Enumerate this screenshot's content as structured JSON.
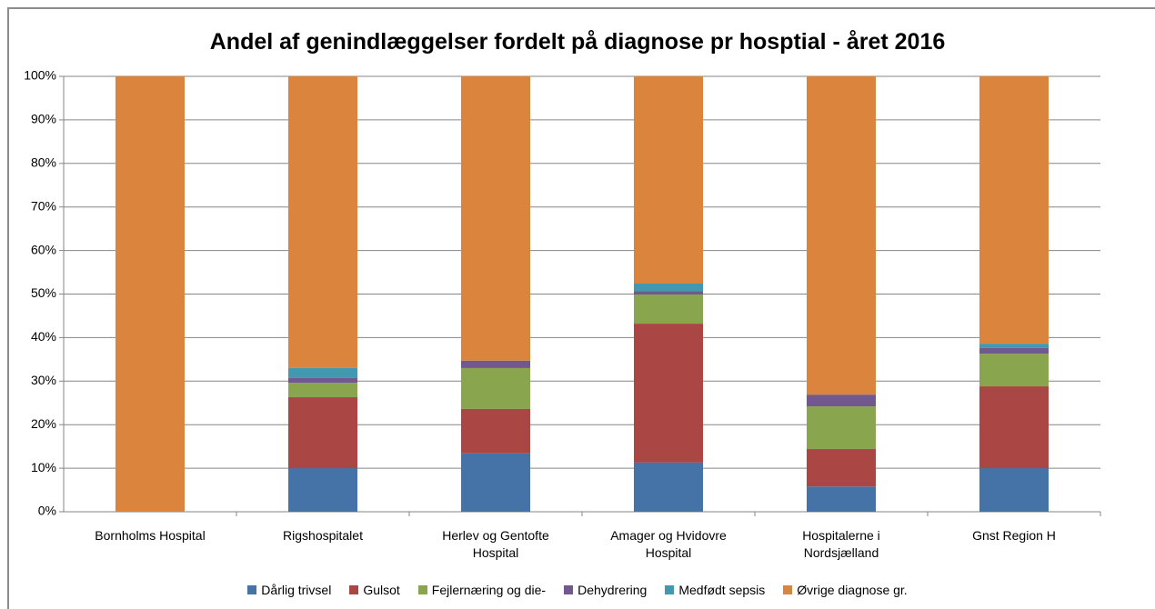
{
  "chart_data": {
    "type": "stacked_bar",
    "title": "Andel af genindlæggelser fordelt på diagnose pr hosptial - året 2016",
    "categories": [
      "Bornholms Hospital",
      "Rigshospitalet",
      "Herlev og Gentofte\nHospital",
      "Amager og Hvidovre\nHospital",
      "Hospitalerne i\nNordsjælland",
      "Gnst Region H"
    ],
    "series": [
      {
        "name": "Dårlig trivsel",
        "color": "#4572a7",
        "values": [
          0,
          10.0,
          13.4,
          11.3,
          5.8,
          10.0
        ]
      },
      {
        "name": "Gulsot",
        "color": "#aa4643",
        "values": [
          0,
          16.3,
          10.2,
          31.9,
          8.6,
          18.8
        ]
      },
      {
        "name": "Fejlernæring og die-",
        "color": "#89a54e",
        "values": [
          0,
          3.3,
          9.4,
          6.7,
          9.8,
          7.5
        ]
      },
      {
        "name": "Dehydrering",
        "color": "#71588f",
        "values": [
          0,
          1.1,
          1.7,
          0.8,
          2.7,
          1.3
        ]
      },
      {
        "name": "Medfødt sepsis",
        "color": "#4198af",
        "values": [
          0,
          2.3,
          0,
          1.7,
          0,
          1.0
        ]
      },
      {
        "name": "Øvrige diagnose gr.",
        "color": "#db843d",
        "values": [
          100,
          67.0,
          65.3,
          47.6,
          73.1,
          61.4
        ]
      }
    ],
    "ylim": [
      0,
      100
    ],
    "yticks": [
      {
        "value": 0,
        "label": "0%"
      },
      {
        "value": 10,
        "label": "10%"
      },
      {
        "value": 20,
        "label": "20%"
      },
      {
        "value": 30,
        "label": "30%"
      },
      {
        "value": 40,
        "label": "40%"
      },
      {
        "value": 50,
        "label": "50%"
      },
      {
        "value": 60,
        "label": "60%"
      },
      {
        "value": 70,
        "label": "70%"
      },
      {
        "value": 80,
        "label": "80%"
      },
      {
        "value": 90,
        "label": "90%"
      },
      {
        "value": 100,
        "label": "100%"
      }
    ],
    "grid": true,
    "legend": "bottom"
  }
}
